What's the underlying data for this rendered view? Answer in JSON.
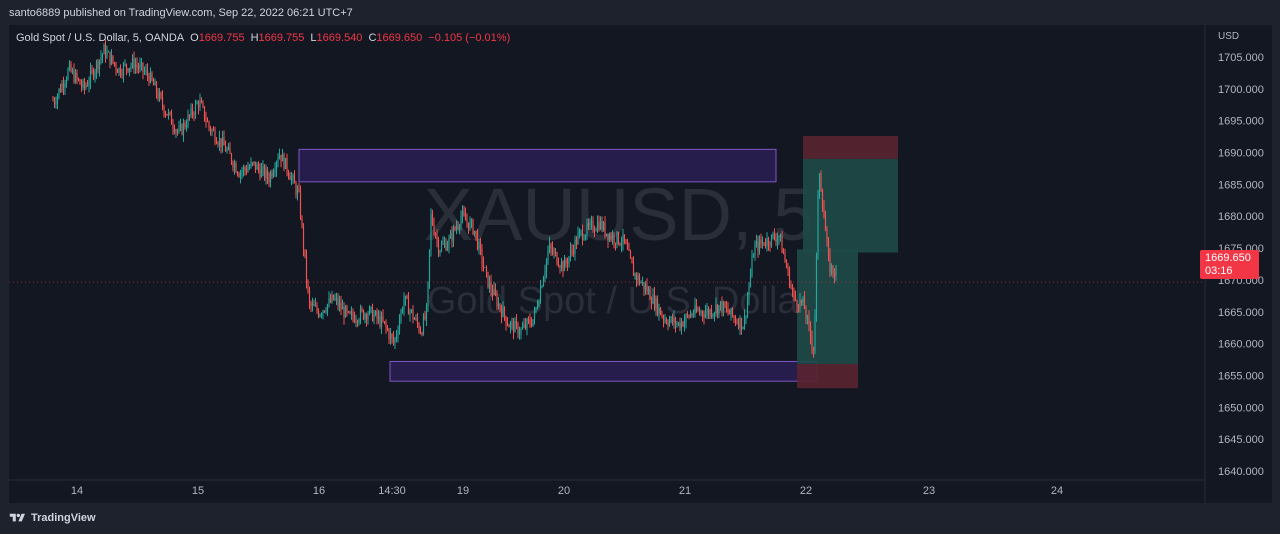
{
  "publisher_line": "santo6889 published on TradingView.com, Sep 22, 2022 06:21 UTC+7",
  "legend": {
    "symbol": "Gold Spot / U.S. Dollar, 5, OANDA",
    "o_label": "O",
    "o_value": "1669.755",
    "h_label": "H",
    "h_value": "1669.755",
    "l_label": "L",
    "l_value": "1669.540",
    "c_label": "C",
    "c_value": "1669.650",
    "change": "−0.105 (−0.01%)"
  },
  "watermark": {
    "ticker": "XAUUSD, 5",
    "description": "Gold Spot / U.S. Dollar"
  },
  "price_tag": {
    "price": "1669.650",
    "countdown": "03:16"
  },
  "footer": {
    "brand": "TradingView"
  },
  "colors": {
    "up": "#26a69a",
    "down": "#ef5350",
    "zone_fill": "#2a1e55",
    "zone_border": "#7e57c2",
    "profit_fill": "#1e4a48",
    "loss_fill": "#5a2430",
    "price_tag": "#f23645"
  },
  "chart_data": {
    "type": "candlestick",
    "symbol": "XAUUSD",
    "timeframe": "5",
    "ylim": [
      1637,
      1709
    ],
    "currency_label": "USD",
    "y_ticks": [
      "1705.000",
      "1700.000",
      "1695.000",
      "1690.000",
      "1685.000",
      "1680.000",
      "1675.000",
      "1670.000",
      "1665.000",
      "1660.000",
      "1655.000",
      "1650.000",
      "1645.000",
      "1640.000"
    ],
    "x_ticks": [
      "14",
      "15",
      "16",
      "14:30",
      "19",
      "20",
      "21",
      "22",
      "23",
      "24"
    ],
    "last_price": 1669.65,
    "price_path": [
      [
        0,
        1706
      ],
      [
        8,
        1703
      ],
      [
        25,
        1702
      ],
      [
        45,
        1698
      ],
      [
        60,
        1703
      ],
      [
        75,
        1700
      ],
      [
        95,
        1706
      ],
      [
        110,
        1703
      ],
      [
        125,
        1704
      ],
      [
        140,
        1702
      ],
      [
        155,
        1697
      ],
      [
        170,
        1693
      ],
      [
        190,
        1698
      ],
      [
        200,
        1694
      ],
      [
        215,
        1691
      ],
      [
        230,
        1687
      ],
      [
        245,
        1688
      ],
      [
        260,
        1686
      ],
      [
        270,
        1690
      ],
      [
        280,
        1687
      ],
      [
        290,
        1683
      ],
      [
        300,
        1666
      ],
      [
        310,
        1665
      ],
      [
        325,
        1667
      ],
      [
        340,
        1664
      ],
      [
        360,
        1665
      ],
      [
        375,
        1663
      ],
      [
        385,
        1660
      ],
      [
        395,
        1667
      ],
      [
        405,
        1664
      ],
      [
        412,
        1662
      ],
      [
        418,
        1665
      ],
      [
        422,
        1680
      ],
      [
        430,
        1675
      ],
      [
        440,
        1676
      ],
      [
        452,
        1680
      ],
      [
        465,
        1678
      ],
      [
        478,
        1670
      ],
      [
        490,
        1666
      ],
      [
        500,
        1663
      ],
      [
        512,
        1662
      ],
      [
        525,
        1664
      ],
      [
        540,
        1675
      ],
      [
        555,
        1672
      ],
      [
        570,
        1677
      ],
      [
        590,
        1679
      ],
      [
        600,
        1677
      ],
      [
        615,
        1676
      ],
      [
        625,
        1671
      ],
      [
        640,
        1668
      ],
      [
        655,
        1664
      ],
      [
        670,
        1663
      ],
      [
        685,
        1665
      ],
      [
        700,
        1665
      ],
      [
        712,
        1666
      ],
      [
        725,
        1664
      ],
      [
        735,
        1663
      ],
      [
        745,
        1675
      ],
      [
        755,
        1676
      ],
      [
        770,
        1677
      ],
      [
        785,
        1667
      ],
      [
        795,
        1666
      ],
      [
        800,
        1662
      ],
      [
        805,
        1659
      ],
      [
        810,
        1688
      ],
      [
        815,
        1680
      ],
      [
        820,
        1672
      ],
      [
        828,
        1671
      ]
    ],
    "zones": [
      {
        "top": 1690.5,
        "bottom": 1685.4,
        "x_from": 290,
        "x_to": 767
      },
      {
        "top": 1657.2,
        "bottom": 1654.1,
        "x_from": 381,
        "x_to": 808
      }
    ],
    "position_tool": {
      "upper_profit": {
        "top": 1689.0,
        "bottom": 1674.3
      },
      "upper_loss": {
        "top": 1692.6,
        "bottom": 1689.0
      },
      "lower_profit": {
        "top": 1674.8,
        "bottom": 1656.8
      },
      "lower_loss": {
        "top": 1656.8,
        "bottom": 1653.0
      }
    }
  }
}
